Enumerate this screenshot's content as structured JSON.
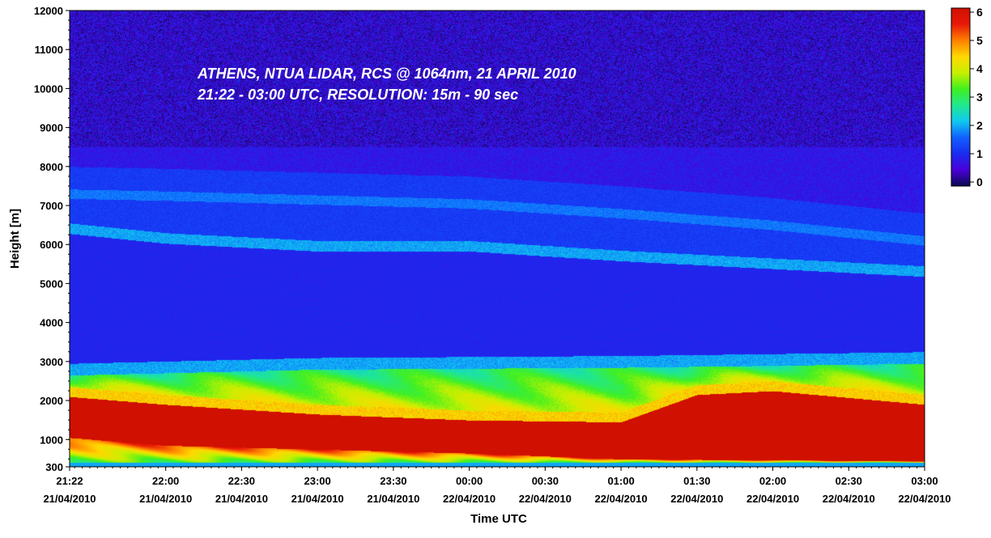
{
  "chart_data": {
    "type": "heatmap",
    "title_lines": [
      "ATHENS, NTUA LIDAR, RCS @ 1064nm, 21 APRIL 2010",
      "21:22 - 03:00 UTC, RESOLUTION: 15m - 90 sec"
    ],
    "xlabel": "Time UTC",
    "ylabel": "Height [m]",
    "x_range_hours": [
      21.367,
      27.0
    ],
    "ylim": [
      300,
      12000
    ],
    "x_ticks": [
      {
        "time": "21:22",
        "date": "21/04/2010",
        "hour": 21.367
      },
      {
        "time": "22:00",
        "date": "21/04/2010",
        "hour": 22.0
      },
      {
        "time": "22:30",
        "date": "21/04/2010",
        "hour": 22.5
      },
      {
        "time": "23:00",
        "date": "21/04/2010",
        "hour": 23.0
      },
      {
        "time": "23:30",
        "date": "21/04/2010",
        "hour": 23.5
      },
      {
        "time": "00:00",
        "date": "22/04/2010",
        "hour": 24.0
      },
      {
        "time": "00:30",
        "date": "22/04/2010",
        "hour": 24.5
      },
      {
        "time": "01:00",
        "date": "22/04/2010",
        "hour": 25.0
      },
      {
        "time": "01:30",
        "date": "22/04/2010",
        "hour": 25.5
      },
      {
        "time": "02:00",
        "date": "22/04/2010",
        "hour": 26.0
      },
      {
        "time": "02:30",
        "date": "22/04/2010",
        "hour": 26.5
      },
      {
        "time": "03:00",
        "date": "22/04/2010",
        "hour": 27.0
      }
    ],
    "y_ticks": [
      300,
      1000,
      2000,
      3000,
      4000,
      5000,
      6000,
      7000,
      8000,
      9000,
      10000,
      11000,
      12000
    ],
    "colorbar": {
      "min": 0,
      "max": 6,
      "ticks": [
        0,
        1,
        2,
        3,
        4,
        5,
        6
      ],
      "colors": [
        "#0a0a50",
        "#4a00d8",
        "#1a2cf0",
        "#1060ff",
        "#10c8f0",
        "#20e890",
        "#40f020",
        "#c8f000",
        "#ffd800",
        "#ff8000",
        "#e81808",
        "#d01000"
      ]
    },
    "layers": [
      {
        "name": "aerosol_layer_upper",
        "value": 2.2,
        "height_m_at": [
          [
            21.367,
            6400
          ],
          [
            22.0,
            6150
          ],
          [
            23.0,
            5950
          ],
          [
            24.0,
            5950
          ],
          [
            25.0,
            5700
          ],
          [
            26.0,
            5500
          ],
          [
            27.0,
            5300
          ]
        ]
      },
      {
        "name": "aerosol_layer_top",
        "value": 1.6,
        "height_m_at": [
          [
            21.367,
            7300
          ],
          [
            22.0,
            7250
          ],
          [
            24.0,
            7050
          ],
          [
            25.0,
            6800
          ],
          [
            26.0,
            6500
          ],
          [
            27.0,
            6100
          ]
        ]
      },
      {
        "name": "pbl_top",
        "value": 2.2,
        "height_m_at": [
          [
            21.367,
            2800
          ],
          [
            23.0,
            2950
          ],
          [
            25.0,
            3000
          ],
          [
            26.0,
            3050
          ],
          [
            27.0,
            3100
          ]
        ]
      },
      {
        "name": "saturated_core_top",
        "value": 6.0,
        "height_m_at": [
          [
            21.367,
            2100
          ],
          [
            22.0,
            1900
          ],
          [
            23.0,
            1650
          ],
          [
            24.0,
            1500
          ],
          [
            25.0,
            1450
          ],
          [
            25.5,
            2150
          ],
          [
            26.0,
            2250
          ],
          [
            27.0,
            1900
          ]
        ]
      },
      {
        "name": "saturated_core_bottom",
        "value": 6.0,
        "height_m_at": [
          [
            21.367,
            1050
          ],
          [
            22.0,
            850
          ],
          [
            23.0,
            750
          ],
          [
            24.0,
            650
          ],
          [
            25.0,
            500
          ],
          [
            27.0,
            450
          ]
        ]
      }
    ]
  }
}
